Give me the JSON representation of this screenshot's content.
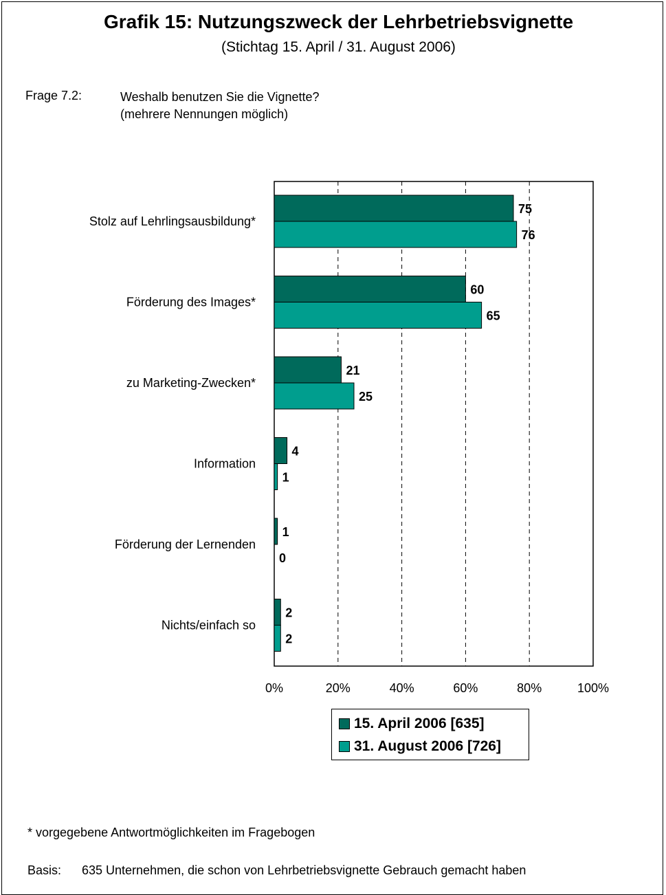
{
  "header": {
    "title": "Grafik 15: Nutzungszweck der Lehrbetriebsvignette",
    "subtitle": "(Stichtag 15. April / 31. August 2006)"
  },
  "question": {
    "label": "Frage 7.2:",
    "text_line1": "Weshalb benutzen Sie die Vignette?",
    "text_line2": "(mehrere Nennungen möglich)"
  },
  "chart_data": {
    "type": "bar",
    "orientation": "horizontal",
    "categories": [
      "Stolz auf Lehrlingsausbildung*",
      "Förderung des Images*",
      "zu Marketing-Zwecken*",
      "Information",
      "Förderung der Lernenden",
      "Nichts/einfach so"
    ],
    "series": [
      {
        "name": "15. April 2006 [635]",
        "values": [
          75,
          60,
          21,
          4,
          1,
          2
        ],
        "color": "#006a5b"
      },
      {
        "name": "31. August 2006 [726]",
        "values": [
          76,
          65,
          25,
          1,
          0,
          2
        ],
        "color": "#009e8e"
      }
    ],
    "xlim": [
      0,
      100
    ],
    "xticks": [
      "0%",
      "20%",
      "40%",
      "60%",
      "80%",
      "100%"
    ],
    "grid": "vertical dashed",
    "legend_position": "bottom-center"
  },
  "footnote": "* vorgegebene Antwortmöglichkeiten im Fragebogen",
  "basis": {
    "label": "Basis:",
    "text": "635 Unternehmen, die schon von Lehrbetriebsvignette Gebrauch gemacht haben"
  }
}
